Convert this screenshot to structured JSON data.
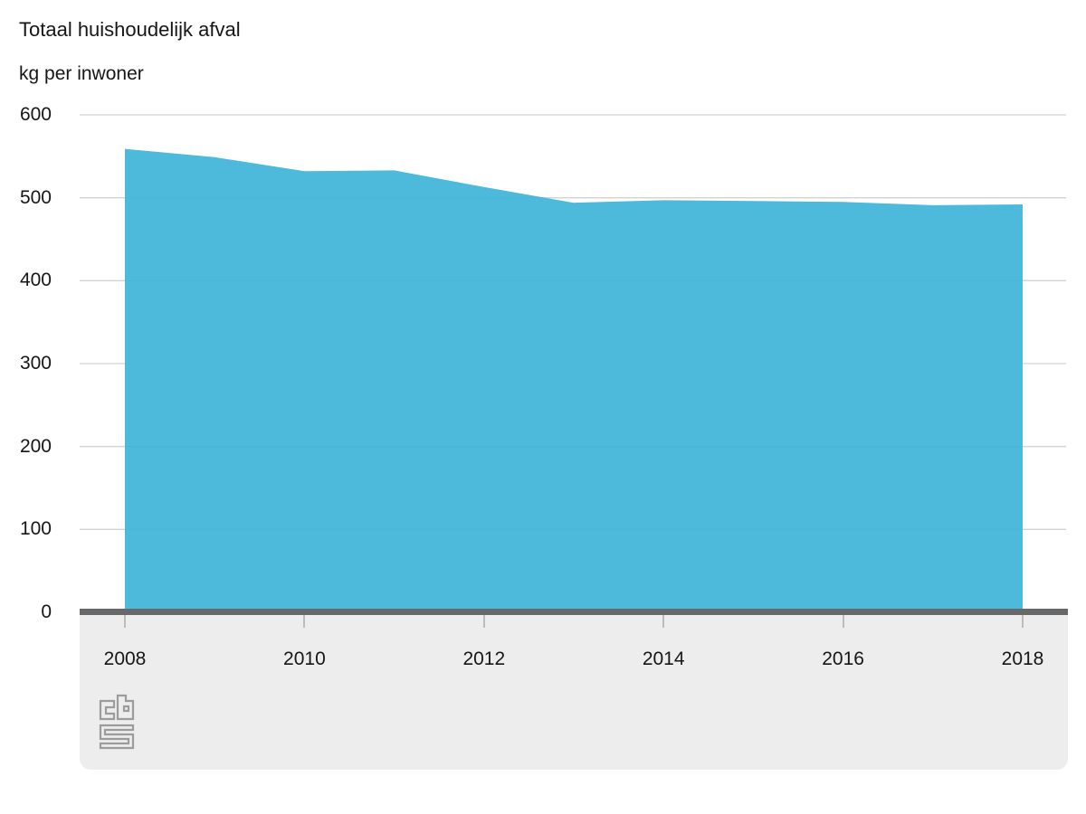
{
  "header": {
    "title": "Totaal huishoudelijk afval",
    "subtitle": "kg per inwoner"
  },
  "chart_data": {
    "type": "area",
    "title": "Totaal huishoudelijk afval",
    "subtitle": "kg per inwoner",
    "ylabel": "kg per inwoner",
    "xlabel": "",
    "x": [
      2008,
      2009,
      2010,
      2011,
      2012,
      2013,
      2014,
      2015,
      2016,
      2017,
      2018
    ],
    "values": [
      559,
      549,
      532,
      533,
      513,
      494,
      497,
      496,
      495,
      491,
      492
    ],
    "series_name": "Totaal huishoudelijk afval",
    "ylim": [
      0,
      600
    ],
    "yticks": [
      0,
      100,
      200,
      300,
      400,
      500,
      600
    ],
    "xticks": [
      2008,
      2010,
      2012,
      2014,
      2016,
      2018
    ],
    "grid": "horizontal",
    "legend_position": "none"
  },
  "colors": {
    "area": "#3fb4d8",
    "gridline": "#d2d2d2",
    "axis_bar": "#66686a",
    "axis_band": "#ededed",
    "tick": "#bcbcbc",
    "text": "#161616",
    "logo": "#9c9c9c",
    "background": "#ffffff"
  },
  "footer": {
    "logo": "cbs-logo"
  }
}
